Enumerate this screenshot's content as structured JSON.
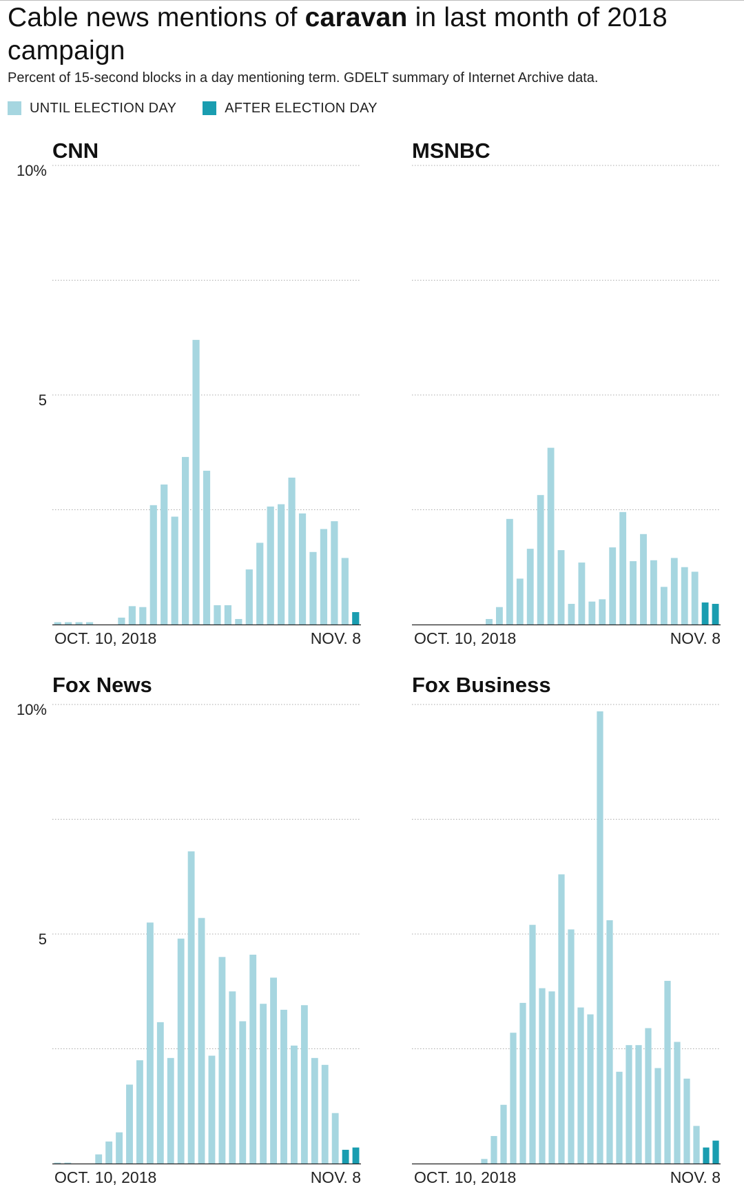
{
  "header": {
    "title_pre": "Cable news mentions of ",
    "title_bold": "caravan",
    "title_post": " in last month of 2018 campaign",
    "subtitle": "Percent of 15-second blocks in a day mentioning term. GDELT summary of Internet Archive data."
  },
  "legend": [
    {
      "label": "UNTIL ELECTION DAY",
      "color": "#a6d6e0"
    },
    {
      "label": "AFTER ELECTION DAY",
      "color": "#1a9db0"
    }
  ],
  "chart_data": [
    {
      "type": "bar",
      "title": "CNN",
      "ylim": [
        0,
        10
      ],
      "yticks": [
        "10%",
        "",
        "5",
        ""
      ],
      "xlabels": [
        "OCT. 10, 2018",
        "NOV. 8"
      ],
      "values": [
        0.05,
        0.05,
        0.05,
        0.05,
        0,
        0,
        0.15,
        0.4,
        0.38,
        2.6,
        3.05,
        2.35,
        3.65,
        6.2,
        3.35,
        0.42,
        0.42,
        0.12,
        1.2,
        1.78,
        2.57,
        2.62,
        3.2,
        2.42,
        1.58,
        2.08,
        2.25,
        1.45,
        0.27
      ],
      "after_election_from_index": 28
    },
    {
      "type": "bar",
      "title": "MSNBC",
      "ylim": [
        0,
        10
      ],
      "yticks": [
        "",
        "",
        "",
        ""
      ],
      "xlabels": [
        "OCT. 10, 2018",
        "NOV. 8"
      ],
      "values": [
        0,
        0,
        0,
        0,
        0,
        0,
        0,
        0.12,
        0.38,
        2.3,
        1.0,
        1.65,
        2.82,
        3.85,
        1.62,
        0.45,
        1.35,
        0.5,
        0.55,
        1.68,
        2.45,
        1.38,
        1.97,
        1.4,
        0.82,
        1.45,
        1.25,
        1.15,
        0.48,
        0.45
      ],
      "after_election_from_index": 28
    },
    {
      "type": "bar",
      "title": "Fox News",
      "ylim": [
        0,
        10
      ],
      "yticks": [
        "10%",
        "",
        "5",
        ""
      ],
      "xlabels": [
        "OCT. 10, 2018",
        "NOV. 8"
      ],
      "values": [
        0.02,
        0.02,
        0,
        0,
        0.2,
        0.48,
        0.68,
        1.72,
        2.25,
        5.25,
        3.08,
        2.3,
        4.9,
        6.8,
        5.35,
        2.35,
        4.5,
        3.75,
        3.1,
        4.55,
        3.48,
        4.05,
        3.35,
        2.57,
        3.45,
        2.3,
        2.15,
        1.1,
        0.3,
        0.35
      ],
      "after_election_from_index": 28
    },
    {
      "type": "bar",
      "title": "Fox Business",
      "ylim": [
        0,
        10
      ],
      "yticks": [
        "",
        "",
        "",
        ""
      ],
      "xlabels": [
        "OCT. 10, 2018",
        "NOV. 8"
      ],
      "values": [
        0,
        0,
        0,
        0,
        0,
        0,
        0,
        0.1,
        0.6,
        1.28,
        2.85,
        3.5,
        5.2,
        3.82,
        3.75,
        6.3,
        5.1,
        3.4,
        3.25,
        9.85,
        5.3,
        2.0,
        2.58,
        2.58,
        2.95,
        2.08,
        3.98,
        2.65,
        1.85,
        0.82,
        0.35,
        0.5
      ],
      "after_election_from_index": 30
    }
  ]
}
